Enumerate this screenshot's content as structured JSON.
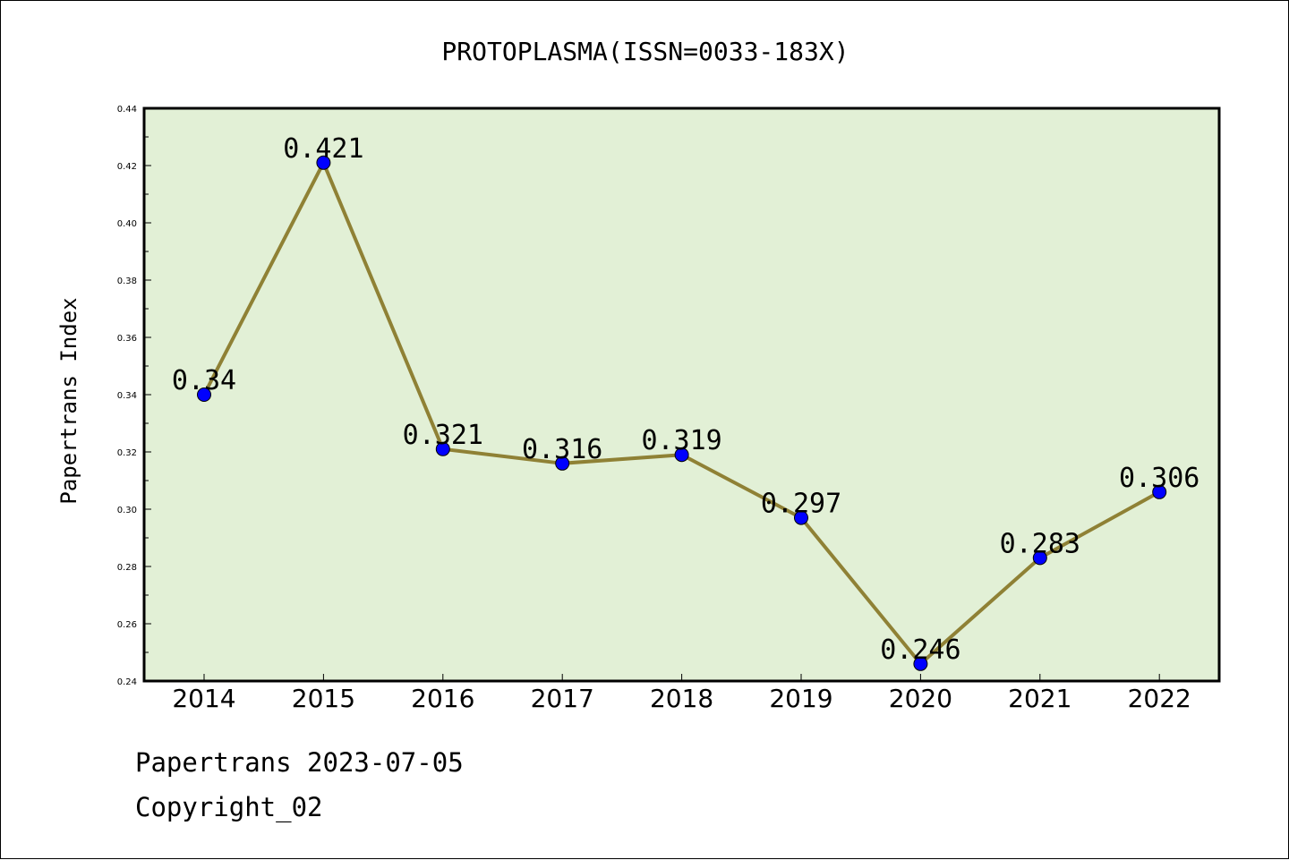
{
  "chart_data": {
    "type": "line",
    "title": "PROTOPLASMA(ISSN=0033-183X)",
    "xlabel": "",
    "ylabel": "Papertrans Index",
    "categories": [
      "2014",
      "2015",
      "2016",
      "2017",
      "2018",
      "2019",
      "2020",
      "2021",
      "2022"
    ],
    "series": [
      {
        "values": [
          0.34,
          0.421,
          0.321,
          0.316,
          0.319,
          0.297,
          0.246,
          0.283,
          0.306
        ],
        "labels": [
          "0.34",
          "0.421",
          "0.321",
          "0.316",
          "0.319",
          "0.297",
          "0.246",
          "0.283",
          "0.306"
        ]
      }
    ],
    "ylim": [
      0.24,
      0.44
    ],
    "yticks": [
      "0.24",
      "0.26",
      "0.28",
      "0.30",
      "0.32",
      "0.34",
      "0.36",
      "0.38",
      "0.40",
      "0.42",
      "0.44"
    ],
    "grid": false,
    "legend": "none",
    "colors": {
      "plot_background": "#e2f0d6",
      "line": "#8f8135",
      "marker": "#0000ff"
    }
  },
  "footer": {
    "line1": "Papertrans 2023-07-05",
    "line2": "Copyright_02"
  }
}
